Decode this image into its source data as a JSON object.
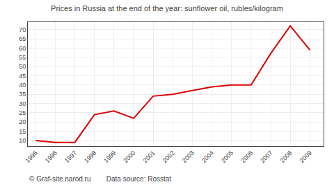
{
  "chart_data": {
    "type": "line",
    "title": "Prices in Russia at the end of the year: sunflower oil, rubles/kilogram",
    "x": [
      1995,
      1996,
      1997,
      1998,
      1999,
      2000,
      2001,
      2002,
      2003,
      2004,
      2005,
      2006,
      2007,
      2008,
      2009
    ],
    "values": [
      10,
      9,
      9,
      24,
      26,
      22,
      34,
      35,
      37,
      39,
      40,
      40,
      57,
      72,
      59
    ],
    "color": "#dd0000",
    "xlim": [
      1994.6,
      2009.7
    ],
    "xticks": [
      1995,
      1996,
      1997,
      1998,
      1999,
      2000,
      2001,
      2002,
      2003,
      2004,
      2005,
      2006,
      2007,
      2008,
      2009
    ],
    "ylim": [
      7,
      74
    ],
    "yticks": [
      10,
      15,
      20,
      25,
      30,
      35,
      40,
      45,
      50,
      55,
      60,
      65,
      70
    ],
    "grid": true,
    "annotations": [
      "© Graf-site.narod.ru        Data source: Rosstat"
    ]
  }
}
